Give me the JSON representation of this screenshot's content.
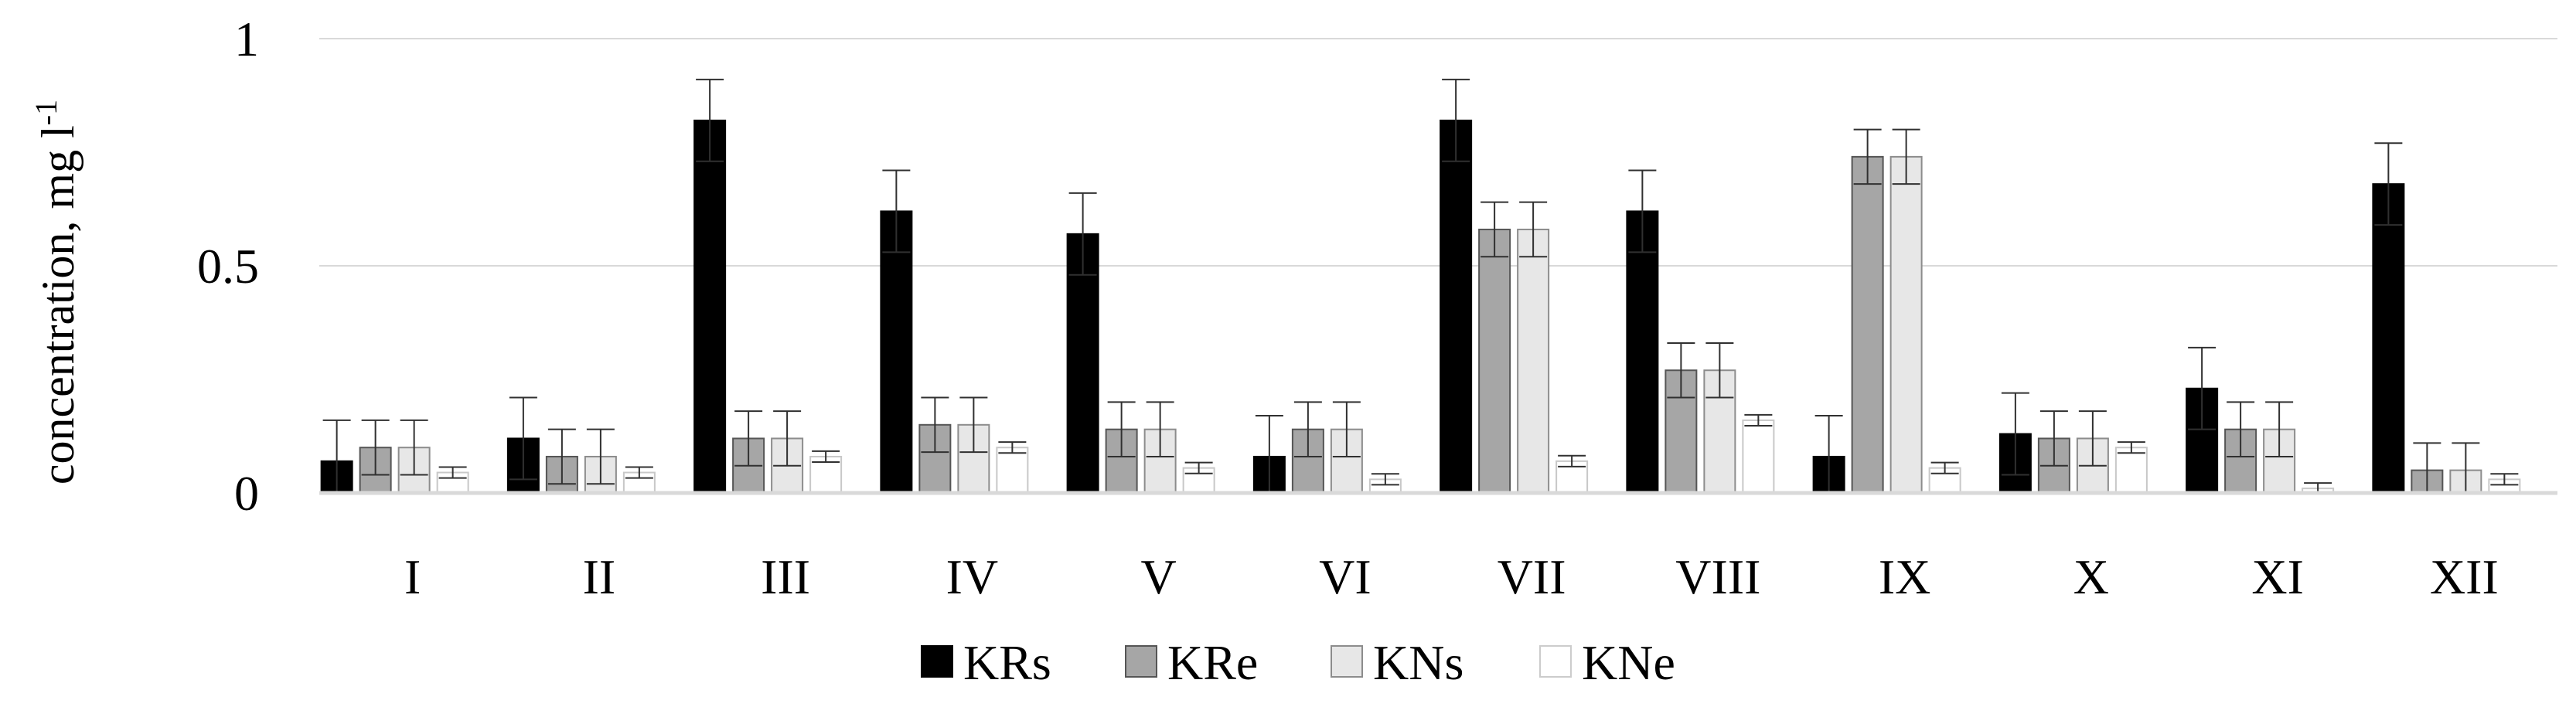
{
  "chart_data": {
    "type": "bar",
    "title": "",
    "xlabel": "",
    "ylabel": "concentration, mg l",
    "ylabel_superscript": "-1",
    "ylim": [
      0,
      1
    ],
    "yticks": [
      0,
      0.5,
      1
    ],
    "ytick_labels": [
      "0",
      "0.5",
      "1"
    ],
    "grid": true,
    "legend_position": "bottom",
    "categories": [
      "I",
      "II",
      "III",
      "IV",
      "V",
      "VI",
      "VII",
      "VIII",
      "IX",
      "X",
      "XI",
      "XII"
    ],
    "series": [
      {
        "name": "KRs",
        "color": "#000000",
        "values": [
          0.07,
          0.12,
          0.82,
          0.62,
          0.57,
          0.08,
          0.82,
          0.62,
          0.08,
          0.13,
          0.23,
          0.68
        ],
        "errors": [
          0.09,
          0.09,
          0.09,
          0.09,
          0.09,
          0.09,
          0.09,
          0.09,
          0.09,
          0.09,
          0.09,
          0.09
        ]
      },
      {
        "name": "KRe",
        "color": "#a6a6a6",
        "values": [
          0.1,
          0.08,
          0.12,
          0.15,
          0.14,
          0.14,
          0.58,
          0.27,
          0.74,
          0.12,
          0.14,
          0.05
        ],
        "errors": [
          0.06,
          0.06,
          0.06,
          0.06,
          0.06,
          0.06,
          0.06,
          0.06,
          0.06,
          0.06,
          0.06,
          0.06
        ]
      },
      {
        "name": "KNs",
        "color": "#e7e7e7",
        "values": [
          0.1,
          0.08,
          0.12,
          0.15,
          0.14,
          0.14,
          0.58,
          0.27,
          0.74,
          0.12,
          0.14,
          0.05
        ],
        "errors": [
          0.06,
          0.06,
          0.06,
          0.06,
          0.06,
          0.06,
          0.06,
          0.06,
          0.06,
          0.06,
          0.06,
          0.06
        ]
      },
      {
        "name": "KNe",
        "color": "#ffffff",
        "values": [
          0.045,
          0.045,
          0.08,
          0.1,
          0.055,
          0.03,
          0.07,
          0.16,
          0.055,
          0.1,
          0.01,
          0.03
        ],
        "errors": [
          0.012,
          0.012,
          0.012,
          0.012,
          0.012,
          0.012,
          0.012,
          0.012,
          0.012,
          0.012,
          0.012,
          0.012
        ]
      }
    ]
  }
}
